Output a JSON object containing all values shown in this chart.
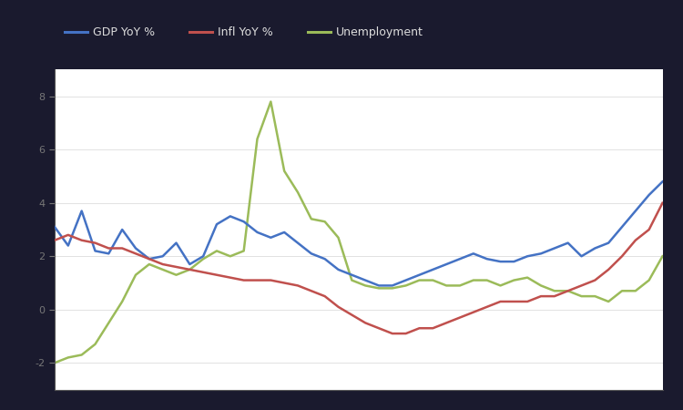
{
  "legend_labels": [
    "GDP YoY %",
    "Infl YoY %",
    "Unemployment"
  ],
  "line_colors": [
    "#4472C4",
    "#C0504D",
    "#9BBB59"
  ],
  "background_color": "#1a1a2e",
  "plot_bg_color": "#FFFFFF",
  "figsize": [
    7.5,
    4.5
  ],
  "dpi": 100,
  "blue_data": [
    3.1,
    2.4,
    3.7,
    2.2,
    2.1,
    3.0,
    2.3,
    1.9,
    2.0,
    2.5,
    1.7,
    2.0,
    3.2,
    3.5,
    3.3,
    2.9,
    2.7,
    2.9,
    2.5,
    2.1,
    1.9,
    1.5,
    1.3,
    1.1,
    0.9,
    0.9,
    1.1,
    1.3,
    1.5,
    1.7,
    1.9,
    2.1,
    1.9,
    1.8,
    1.8,
    2.0,
    2.1,
    2.3,
    2.5,
    2.0,
    2.3,
    2.5,
    3.1,
    3.7,
    4.3,
    4.8
  ],
  "red_data": [
    2.6,
    2.8,
    2.6,
    2.5,
    2.3,
    2.3,
    2.1,
    1.9,
    1.7,
    1.6,
    1.5,
    1.4,
    1.3,
    1.2,
    1.1,
    1.1,
    1.1,
    1.0,
    0.9,
    0.7,
    0.5,
    0.1,
    -0.2,
    -0.5,
    -0.7,
    -0.9,
    -0.9,
    -0.7,
    -0.7,
    -0.5,
    -0.3,
    -0.1,
    0.1,
    0.3,
    0.3,
    0.3,
    0.5,
    0.5,
    0.7,
    0.9,
    1.1,
    1.5,
    2.0,
    2.6,
    3.0,
    4.0
  ],
  "green_data": [
    -2.0,
    -1.8,
    -1.7,
    -1.3,
    -0.5,
    0.3,
    1.3,
    1.7,
    1.5,
    1.3,
    1.5,
    1.9,
    2.2,
    2.0,
    2.2,
    6.4,
    7.8,
    5.2,
    4.4,
    3.4,
    3.3,
    2.7,
    1.1,
    0.9,
    0.8,
    0.8,
    0.9,
    1.1,
    1.1,
    0.9,
    0.9,
    1.1,
    1.1,
    0.9,
    1.1,
    1.2,
    0.9,
    0.7,
    0.7,
    0.5,
    0.5,
    0.3,
    0.7,
    0.7,
    1.1,
    2.0
  ],
  "ylim": [
    -3,
    9
  ],
  "yticks": [
    -2,
    0,
    2,
    4,
    6,
    8
  ],
  "ytick_labels": [
    "-2",
    "0",
    "2",
    "4",
    "6",
    "8"
  ],
  "n_points": 46,
  "legend_text_color": "#DDDDDD",
  "tick_color": "#777777",
  "spine_color": "#555555",
  "grid_color": "#DDDDDD"
}
